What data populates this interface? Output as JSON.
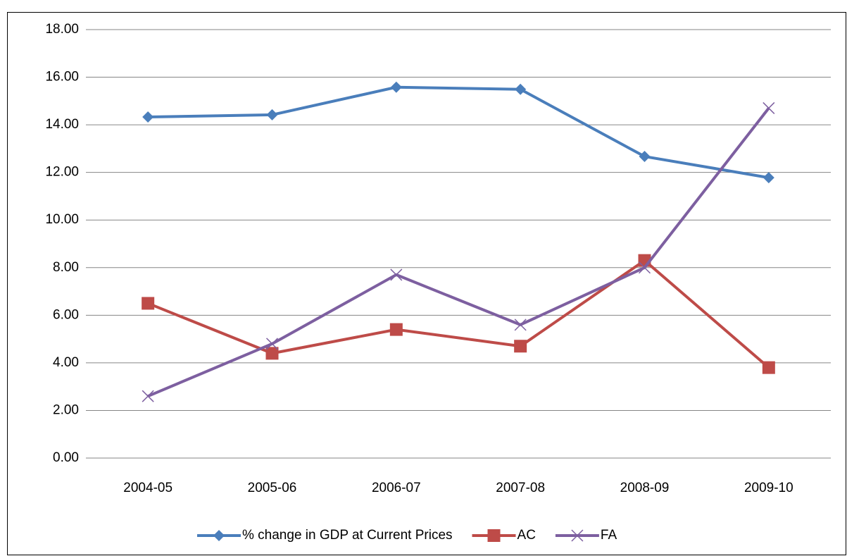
{
  "chart_data": {
    "type": "line",
    "categories": [
      "2004-05",
      "2005-06",
      "2006-07",
      "2007-08",
      "2008-09",
      "2009-10"
    ],
    "series": [
      {
        "name": "% change in GDP at Current Prices",
        "color": "#4a7ebb",
        "marker": "diamond",
        "values": [
          14.33,
          14.42,
          15.58,
          15.49,
          12.67,
          11.78
        ]
      },
      {
        "name": "AC",
        "color": "#be4b48",
        "marker": "square",
        "values": [
          6.5,
          4.4,
          5.4,
          4.7,
          8.3,
          3.8
        ]
      },
      {
        "name": "FA",
        "color": "#7d5fa0",
        "marker": "x",
        "values": [
          2.6,
          4.8,
          7.7,
          5.6,
          8.0,
          14.7
        ]
      }
    ],
    "ylim": [
      0,
      18
    ],
    "yticks": [
      {
        "value": 0,
        "label": "0.00"
      },
      {
        "value": 2,
        "label": "2.00"
      },
      {
        "value": 4,
        "label": "4.00"
      },
      {
        "value": 6,
        "label": "6.00"
      },
      {
        "value": 8,
        "label": "8.00"
      },
      {
        "value": 10,
        "label": "10.00"
      },
      {
        "value": 12,
        "label": "12.00"
      },
      {
        "value": 14,
        "label": "14.00"
      },
      {
        "value": 16,
        "label": "16.00"
      },
      {
        "value": 18,
        "label": "18.00"
      }
    ],
    "grid": true,
    "legend": "bottom"
  }
}
